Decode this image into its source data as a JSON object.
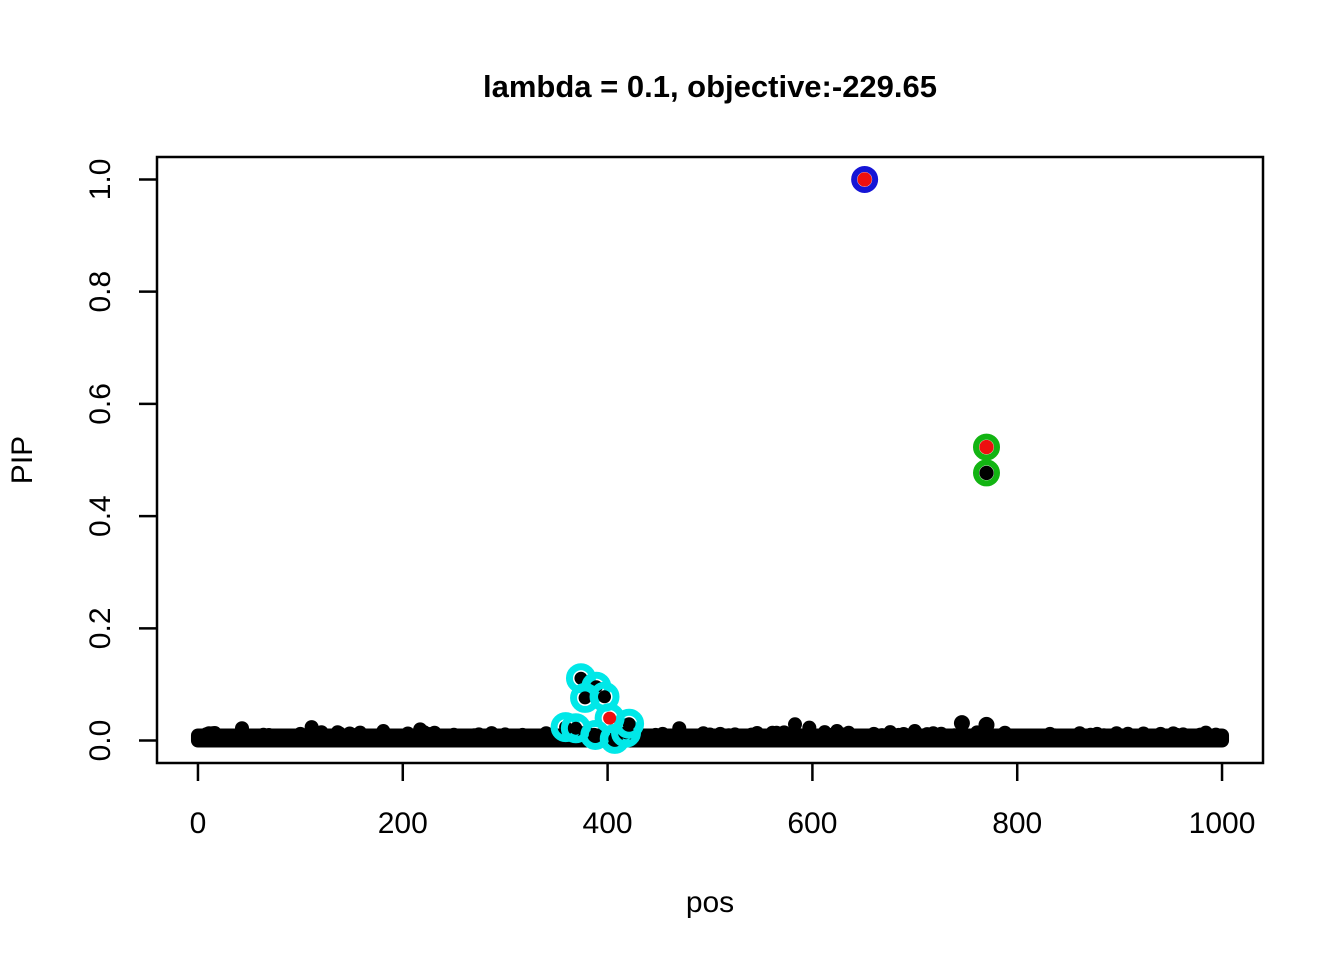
{
  "chart_data": {
    "type": "scatter",
    "title": "lambda = 0.1, objective:-229.65",
    "xlabel": "pos",
    "ylabel": "PIP",
    "x_ticks": [
      "0",
      "200",
      "400",
      "600",
      "800",
      "1000"
    ],
    "x_tick_values": [
      0,
      200,
      400,
      600,
      800,
      1000
    ],
    "y_ticks": [
      "0.0",
      "0.2",
      "0.4",
      "0.6",
      "0.8",
      "1.0"
    ],
    "y_tick_values": [
      0,
      0.2,
      0.4,
      0.6,
      0.8,
      1.0
    ],
    "xlim": [
      -40,
      1040
    ],
    "ylim": [
      -0.04,
      1.04
    ],
    "grid": false,
    "legend": null,
    "colors": {
      "point": "#000000",
      "highlight_fill_red": "#ee0f0f",
      "ring_blue": "#1515d6",
      "ring_green": "#12b412",
      "ring_cyan": "#00e8e8",
      "axis": "#000000",
      "background": "#ffffff"
    },
    "baseline_band": {
      "description": "dense band of ~1000 black points with PIP approx 0 spanning full pos range",
      "n_points": 1000,
      "x_range": [
        0,
        1000
      ],
      "y_range": [
        0,
        0.015
      ]
    },
    "baseline_bumps": [
      [
        14,
        0.013
      ],
      [
        43,
        0.022
      ],
      [
        100,
        0.012
      ],
      [
        111,
        0.024
      ],
      [
        138,
        0.013
      ],
      [
        181,
        0.017
      ],
      [
        217,
        0.02
      ],
      [
        231,
        0.014
      ],
      [
        300,
        0.011
      ],
      [
        340,
        0.013
      ],
      [
        470,
        0.022
      ],
      [
        510,
        0.012
      ],
      [
        565,
        0.014
      ],
      [
        583,
        0.029
      ],
      [
        597,
        0.023
      ],
      [
        612,
        0.015
      ],
      [
        624,
        0.017
      ],
      [
        660,
        0.012
      ],
      [
        676,
        0.015
      ],
      [
        700,
        0.017
      ],
      [
        718,
        0.013
      ],
      [
        788,
        0.014
      ],
      [
        832,
        0.012
      ],
      [
        861,
        0.013
      ],
      [
        878,
        0.012
      ],
      [
        897,
        0.013
      ],
      [
        940,
        0.012
      ],
      [
        962,
        0.011
      ]
    ],
    "isolated_points": [
      {
        "x": 746,
        "y": 0.031,
        "fill": "black"
      },
      {
        "x": 770,
        "y": 0.028,
        "fill": "black"
      }
    ],
    "cyan_cluster_points": [
      {
        "x": 374,
        "y": 0.111,
        "fill": "black",
        "ring": "cyan"
      },
      {
        "x": 389,
        "y": 0.096,
        "fill": "black",
        "ring": "cyan"
      },
      {
        "x": 378,
        "y": 0.076,
        "fill": "black",
        "ring": "cyan"
      },
      {
        "x": 397,
        "y": 0.078,
        "fill": "black",
        "ring": "cyan"
      },
      {
        "x": 359,
        "y": 0.024,
        "fill": "black",
        "ring": "cyan"
      },
      {
        "x": 369,
        "y": 0.022,
        "fill": "black",
        "ring": "cyan"
      },
      {
        "x": 388,
        "y": 0.01,
        "fill": "black",
        "ring": "cyan"
      },
      {
        "x": 407,
        "y": 0.003,
        "fill": "black",
        "ring": "cyan"
      },
      {
        "x": 418,
        "y": 0.014,
        "fill": "black",
        "ring": "cyan"
      },
      {
        "x": 421,
        "y": 0.03,
        "fill": "black",
        "ring": "cyan"
      },
      {
        "x": 402,
        "y": 0.04,
        "fill": "red",
        "ring": "cyan"
      }
    ],
    "highlighted_points": [
      {
        "x": 651,
        "y": 1.0,
        "fill": "red",
        "ring": "blue"
      },
      {
        "x": 770,
        "y": 0.523,
        "fill": "red",
        "ring": "green"
      },
      {
        "x": 770,
        "y": 0.477,
        "fill": "black",
        "ring": "green"
      }
    ]
  }
}
